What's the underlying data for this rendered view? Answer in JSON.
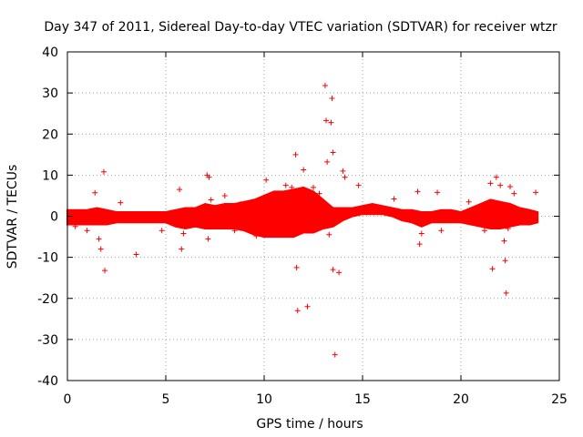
{
  "chart_data": {
    "type": "scatter",
    "title": "Day 347 of 2011, Sidereal Day-to-day VTEC variation (SDTVAR) for receiver wtzr",
    "xlabel": "GPS time / hours",
    "ylabel": "SDTVAR / TECUs",
    "xlim": [
      0,
      25
    ],
    "ylim": [
      -40,
      40
    ],
    "xticks": [
      0,
      5,
      10,
      15,
      20,
      25
    ],
    "yticks": [
      -40,
      -30,
      -20,
      -10,
      0,
      10,
      20,
      30,
      40
    ],
    "grid": true,
    "marker": "+",
    "color": "#ff0000",
    "band": {
      "description": "dense cluster of data points around zero",
      "envelope": [
        [
          0.0,
          -2.0,
          1.5
        ],
        [
          0.5,
          -2.0,
          1.5
        ],
        [
          1.0,
          -2.0,
          1.5
        ],
        [
          1.5,
          -2.0,
          2.0
        ],
        [
          2.0,
          -2.0,
          1.5
        ],
        [
          2.5,
          -1.5,
          1.0
        ],
        [
          3.0,
          -1.5,
          1.0
        ],
        [
          3.5,
          -1.5,
          1.0
        ],
        [
          4.0,
          -1.5,
          1.0
        ],
        [
          4.5,
          -1.5,
          1.0
        ],
        [
          5.0,
          -1.5,
          1.0
        ],
        [
          5.5,
          -2.5,
          1.5
        ],
        [
          6.0,
          -3.0,
          2.0
        ],
        [
          6.5,
          -2.5,
          2.0
        ],
        [
          7.0,
          -3.0,
          3.0
        ],
        [
          7.5,
          -3.0,
          2.5
        ],
        [
          8.0,
          -3.0,
          3.0
        ],
        [
          8.5,
          -3.0,
          3.0
        ],
        [
          9.0,
          -3.5,
          3.5
        ],
        [
          9.5,
          -4.5,
          4.0
        ],
        [
          10.0,
          -5.0,
          5.0
        ],
        [
          10.5,
          -5.0,
          6.0
        ],
        [
          11.0,
          -5.0,
          6.0
        ],
        [
          11.5,
          -5.0,
          6.5
        ],
        [
          12.0,
          -4.0,
          7.0
        ],
        [
          12.5,
          -4.0,
          6.0
        ],
        [
          13.0,
          -3.0,
          4.0
        ],
        [
          13.5,
          -2.5,
          2.0
        ],
        [
          14.0,
          -1.0,
          2.0
        ],
        [
          14.5,
          0.0,
          2.0
        ],
        [
          15.0,
          0.5,
          2.5
        ],
        [
          15.5,
          0.5,
          3.0
        ],
        [
          16.0,
          0.5,
          2.5
        ],
        [
          16.5,
          0.0,
          2.0
        ],
        [
          17.0,
          -1.0,
          1.5
        ],
        [
          17.5,
          -1.5,
          1.5
        ],
        [
          18.0,
          -2.5,
          1.0
        ],
        [
          18.5,
          -1.5,
          1.0
        ],
        [
          19.0,
          -1.5,
          1.5
        ],
        [
          19.5,
          -1.5,
          1.5
        ],
        [
          20.0,
          -1.5,
          1.0
        ],
        [
          20.5,
          -2.0,
          2.0
        ],
        [
          21.0,
          -2.5,
          3.0
        ],
        [
          21.5,
          -3.0,
          4.0
        ],
        [
          22.0,
          -3.0,
          3.5
        ],
        [
          22.5,
          -2.5,
          3.0
        ],
        [
          23.0,
          -2.0,
          2.0
        ],
        [
          23.5,
          -2.0,
          1.5
        ],
        [
          23.9,
          -1.5,
          1.0
        ]
      ]
    },
    "points": [
      [
        1.4,
        5.7
      ],
      [
        1.6,
        -5.5
      ],
      [
        1.7,
        -8.0
      ],
      [
        1.85,
        10.8
      ],
      [
        1.9,
        -13.2
      ],
      [
        1.0,
        -3.5
      ],
      [
        2.7,
        3.3
      ],
      [
        3.5,
        -9.3
      ],
      [
        5.7,
        6.5
      ],
      [
        5.8,
        -8.0
      ],
      [
        5.9,
        -4.2
      ],
      [
        4.8,
        -3.5
      ],
      [
        7.1,
        10.0
      ],
      [
        7.2,
        9.5
      ],
      [
        7.15,
        -5.5
      ],
      [
        7.3,
        4.0
      ],
      [
        8.0,
        5.0
      ],
      [
        8.8,
        3.0
      ],
      [
        10.1,
        8.8
      ],
      [
        11.1,
        7.5
      ],
      [
        11.6,
        15.0
      ],
      [
        11.65,
        -12.5
      ],
      [
        11.7,
        -23.0
      ],
      [
        12.0,
        11.3
      ],
      [
        12.2,
        -22.0
      ],
      [
        12.5,
        7.0
      ],
      [
        13.1,
        31.8
      ],
      [
        13.15,
        23.3
      ],
      [
        13.2,
        13.2
      ],
      [
        13.4,
        22.8
      ],
      [
        13.45,
        28.7
      ],
      [
        13.5,
        15.5
      ],
      [
        13.5,
        -13.0
      ],
      [
        13.6,
        -33.7
      ],
      [
        13.8,
        -13.7
      ],
      [
        13.3,
        -4.5
      ],
      [
        14.0,
        11.0
      ],
      [
        14.1,
        9.5
      ],
      [
        14.8,
        7.5
      ],
      [
        16.6,
        4.2
      ],
      [
        17.8,
        6.0
      ],
      [
        17.9,
        -6.8
      ],
      [
        18.0,
        -4.2
      ],
      [
        18.8,
        5.8
      ],
      [
        19.0,
        -3.5
      ],
      [
        20.4,
        3.5
      ],
      [
        21.1,
        2.5
      ],
      [
        21.2,
        -3.5
      ],
      [
        21.6,
        -12.8
      ],
      [
        21.8,
        9.5
      ],
      [
        22.0,
        7.5
      ],
      [
        22.2,
        -6.0
      ],
      [
        22.25,
        -10.8
      ],
      [
        22.3,
        -18.7
      ],
      [
        22.5,
        7.2
      ],
      [
        22.7,
        5.5
      ],
      [
        23.8,
        5.8
      ],
      [
        9.6,
        -4.8
      ],
      [
        10.5,
        4.5
      ],
      [
        10.2,
        3.5
      ],
      [
        11.4,
        7.0
      ],
      [
        12.8,
        5.5
      ],
      [
        21.5,
        8.0
      ],
      [
        22.4,
        -3.0
      ],
      [
        0.4,
        -2.5
      ],
      [
        8.5,
        -3.5
      ]
    ]
  }
}
